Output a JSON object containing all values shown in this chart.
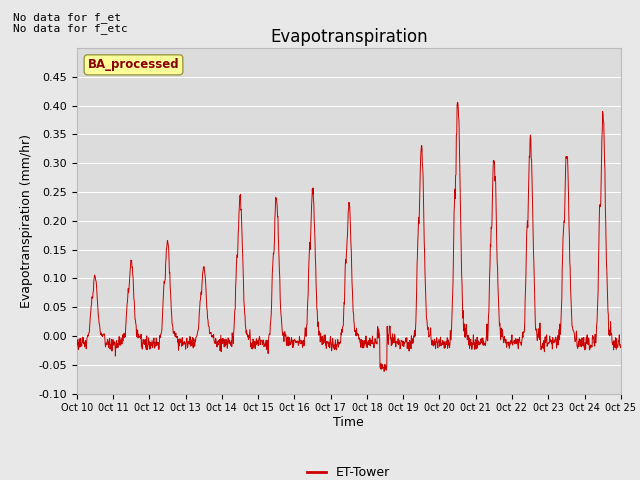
{
  "title": "Evapotranspiration",
  "xlabel": "Time",
  "ylabel": "Evapotranspiration (mm/hr)",
  "ylim": [
    -0.1,
    0.5
  ],
  "yticks": [
    -0.1,
    -0.05,
    0.0,
    0.05,
    0.1,
    0.15,
    0.2,
    0.25,
    0.3,
    0.35,
    0.4,
    0.45
  ],
  "xtick_labels": [
    "Oct 10",
    "0ct 11",
    "0ct 12",
    "0ct 13",
    "0ct 14",
    "0ct 15",
    "0ct 16",
    "0ct 17",
    "0ct 18",
    "0ct 19",
    "0ct 20",
    "0ct 21",
    "0ct 22",
    "0ct 23",
    "0ct 24",
    "0ct 25"
  ],
  "top_left_text1": "No data for f_et",
  "top_left_text2": "No data for f_etc",
  "box_label": "BA_processed",
  "legend_label": "ET-Tower",
  "line_color": "#cc0000",
  "background_color": "#e8e8e8",
  "plot_bg_color": "#dcdcdc",
  "box_facecolor": "#ffff99",
  "box_edgecolor": "#999944",
  "title_fontsize": 12,
  "label_fontsize": 9,
  "tick_fontsize": 8,
  "day_peaks": [
    0.105,
    0.13,
    0.165,
    0.12,
    0.24,
    0.24,
    0.255,
    0.225,
    0.0,
    0.33,
    0.41,
    0.305,
    0.345,
    0.32,
    0.38
  ],
  "n_days": 15
}
